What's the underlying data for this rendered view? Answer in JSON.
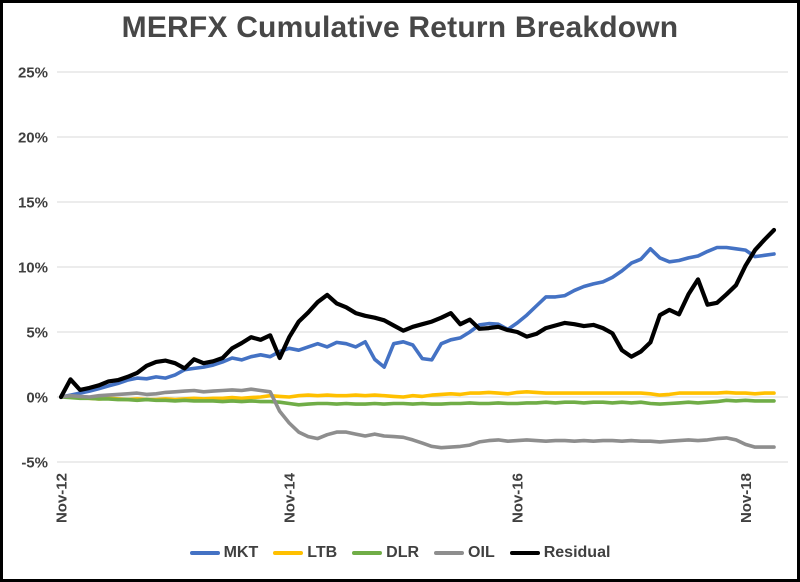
{
  "chart_data": {
    "type": "line",
    "title": "MERFX Cumulative Return Breakdown",
    "xlabel": "",
    "ylabel": "",
    "x_unit": "months (monthly cumulative return points, Nov-2012 through early 2019)",
    "ylim": [
      -5,
      25
    ],
    "grid": "horizontal-only",
    "legend_position": "bottom",
    "y_ticks": [
      {
        "label": "25%",
        "value": 25
      },
      {
        "label": "20%",
        "value": 20
      },
      {
        "label": "15%",
        "value": 15
      },
      {
        "label": "10%",
        "value": 10
      },
      {
        "label": "5%",
        "value": 5
      },
      {
        "label": "0%",
        "value": 0
      },
      {
        "label": "-5%",
        "value": -5
      }
    ],
    "x_ticks": [
      {
        "label": "Nov-12",
        "month": 0
      },
      {
        "label": "Nov-14",
        "month": 24
      },
      {
        "label": "Nov-16",
        "month": 48
      },
      {
        "label": "Nov-18",
        "month": 72
      }
    ],
    "series": [
      {
        "name": "MKT",
        "color": "#4472C4",
        "width": 3.6,
        "values": [
          0,
          0.15,
          0.3,
          0.45,
          0.65,
          0.85,
          1.05,
          1.3,
          1.45,
          1.4,
          1.55,
          1.45,
          1.7,
          2.1,
          2.2,
          2.3,
          2.45,
          2.7,
          3.0,
          2.85,
          3.1,
          3.25,
          3.1,
          3.5,
          3.75,
          3.6,
          3.85,
          4.1,
          3.85,
          4.2,
          4.1,
          3.85,
          4.25,
          2.9,
          2.3,
          4.1,
          4.25,
          4.0,
          2.95,
          2.85,
          4.1,
          4.4,
          4.55,
          5.0,
          5.55,
          5.65,
          5.6,
          5.2,
          5.7,
          6.3,
          7.0,
          7.7,
          7.7,
          7.8,
          8.2,
          8.5,
          8.7,
          8.85,
          9.2,
          9.7,
          10.3,
          10.6,
          11.4,
          10.7,
          10.4,
          10.5,
          10.7,
          10.85,
          11.2,
          11.5,
          11.5,
          11.4,
          11.3,
          10.8,
          10.9,
          11.0
        ]
      },
      {
        "name": "LTB",
        "color": "#FFC000",
        "width": 3.6,
        "values": [
          0,
          0.05,
          -0.05,
          -0.1,
          -0.15,
          -0.1,
          -0.15,
          -0.2,
          -0.15,
          -0.2,
          -0.2,
          -0.15,
          -0.2,
          -0.15,
          -0.1,
          -0.15,
          -0.1,
          -0.1,
          -0.05,
          -0.1,
          -0.05,
          0,
          0.1,
          0.05,
          0,
          0.1,
          0.15,
          0.1,
          0.15,
          0.1,
          0.1,
          0.15,
          0.1,
          0.15,
          0.1,
          0.05,
          0,
          0.1,
          0.05,
          0.15,
          0.2,
          0.25,
          0.2,
          0.3,
          0.3,
          0.35,
          0.3,
          0.25,
          0.35,
          0.4,
          0.35,
          0.3,
          0.3,
          0.3,
          0.3,
          0.3,
          0.3,
          0.3,
          0.3,
          0.3,
          0.3,
          0.3,
          0.25,
          0.15,
          0.2,
          0.3,
          0.3,
          0.3,
          0.3,
          0.3,
          0.35,
          0.3,
          0.3,
          0.25,
          0.3,
          0.3
        ]
      },
      {
        "name": "DLR",
        "color": "#70AD47",
        "width": 3.6,
        "values": [
          0,
          -0.05,
          -0.1,
          -0.1,
          -0.15,
          -0.15,
          -0.2,
          -0.2,
          -0.25,
          -0.2,
          -0.25,
          -0.25,
          -0.3,
          -0.25,
          -0.3,
          -0.3,
          -0.3,
          -0.35,
          -0.3,
          -0.35,
          -0.3,
          -0.35,
          -0.35,
          -0.4,
          -0.5,
          -0.6,
          -0.55,
          -0.5,
          -0.5,
          -0.55,
          -0.5,
          -0.55,
          -0.55,
          -0.5,
          -0.55,
          -0.5,
          -0.5,
          -0.55,
          -0.5,
          -0.55,
          -0.55,
          -0.5,
          -0.5,
          -0.45,
          -0.5,
          -0.5,
          -0.45,
          -0.5,
          -0.5,
          -0.45,
          -0.45,
          -0.4,
          -0.45,
          -0.4,
          -0.4,
          -0.45,
          -0.4,
          -0.4,
          -0.45,
          -0.4,
          -0.45,
          -0.4,
          -0.5,
          -0.55,
          -0.5,
          -0.45,
          -0.4,
          -0.45,
          -0.4,
          -0.35,
          -0.25,
          -0.3,
          -0.25,
          -0.3,
          -0.3,
          -0.3
        ]
      },
      {
        "name": "OIL",
        "color": "#8E8E8E",
        "width": 3.6,
        "values": [
          0,
          0.1,
          0.05,
          0,
          0.1,
          0.15,
          0.2,
          0.25,
          0.3,
          0.2,
          0.25,
          0.35,
          0.4,
          0.45,
          0.5,
          0.4,
          0.45,
          0.5,
          0.55,
          0.5,
          0.6,
          0.5,
          0.4,
          -1.1,
          -2.0,
          -2.7,
          -3.05,
          -3.2,
          -2.9,
          -2.7,
          -2.7,
          -2.85,
          -3.0,
          -2.85,
          -3.0,
          -3.05,
          -3.1,
          -3.3,
          -3.55,
          -3.8,
          -3.9,
          -3.85,
          -3.8,
          -3.7,
          -3.45,
          -3.35,
          -3.3,
          -3.4,
          -3.35,
          -3.3,
          -3.35,
          -3.4,
          -3.35,
          -3.35,
          -3.4,
          -3.35,
          -3.4,
          -3.35,
          -3.35,
          -3.4,
          -3.35,
          -3.4,
          -3.4,
          -3.45,
          -3.4,
          -3.35,
          -3.3,
          -3.35,
          -3.3,
          -3.2,
          -3.15,
          -3.3,
          -3.65,
          -3.85,
          -3.85,
          -3.85
        ]
      },
      {
        "name": "Residual",
        "color": "#000000",
        "width": 4.2,
        "values": [
          0,
          1.35,
          0.55,
          0.7,
          0.9,
          1.2,
          1.3,
          1.55,
          1.85,
          2.4,
          2.7,
          2.8,
          2.6,
          2.2,
          2.9,
          2.6,
          2.75,
          3.0,
          3.75,
          4.15,
          4.6,
          4.4,
          4.75,
          3.0,
          4.6,
          5.8,
          6.5,
          7.3,
          7.85,
          7.2,
          6.9,
          6.45,
          6.25,
          6.1,
          5.9,
          5.5,
          5.1,
          5.4,
          5.6,
          5.8,
          6.1,
          6.45,
          5.6,
          5.95,
          5.25,
          5.3,
          5.4,
          5.15,
          5.0,
          4.65,
          4.85,
          5.3,
          5.5,
          5.7,
          5.6,
          5.45,
          5.55,
          5.3,
          4.9,
          3.6,
          3.1,
          3.5,
          4.2,
          6.3,
          6.7,
          6.35,
          7.9,
          9.05,
          7.1,
          7.25,
          7.9,
          8.6,
          10.1,
          11.3,
          12.1,
          12.85
        ]
      }
    ]
  }
}
